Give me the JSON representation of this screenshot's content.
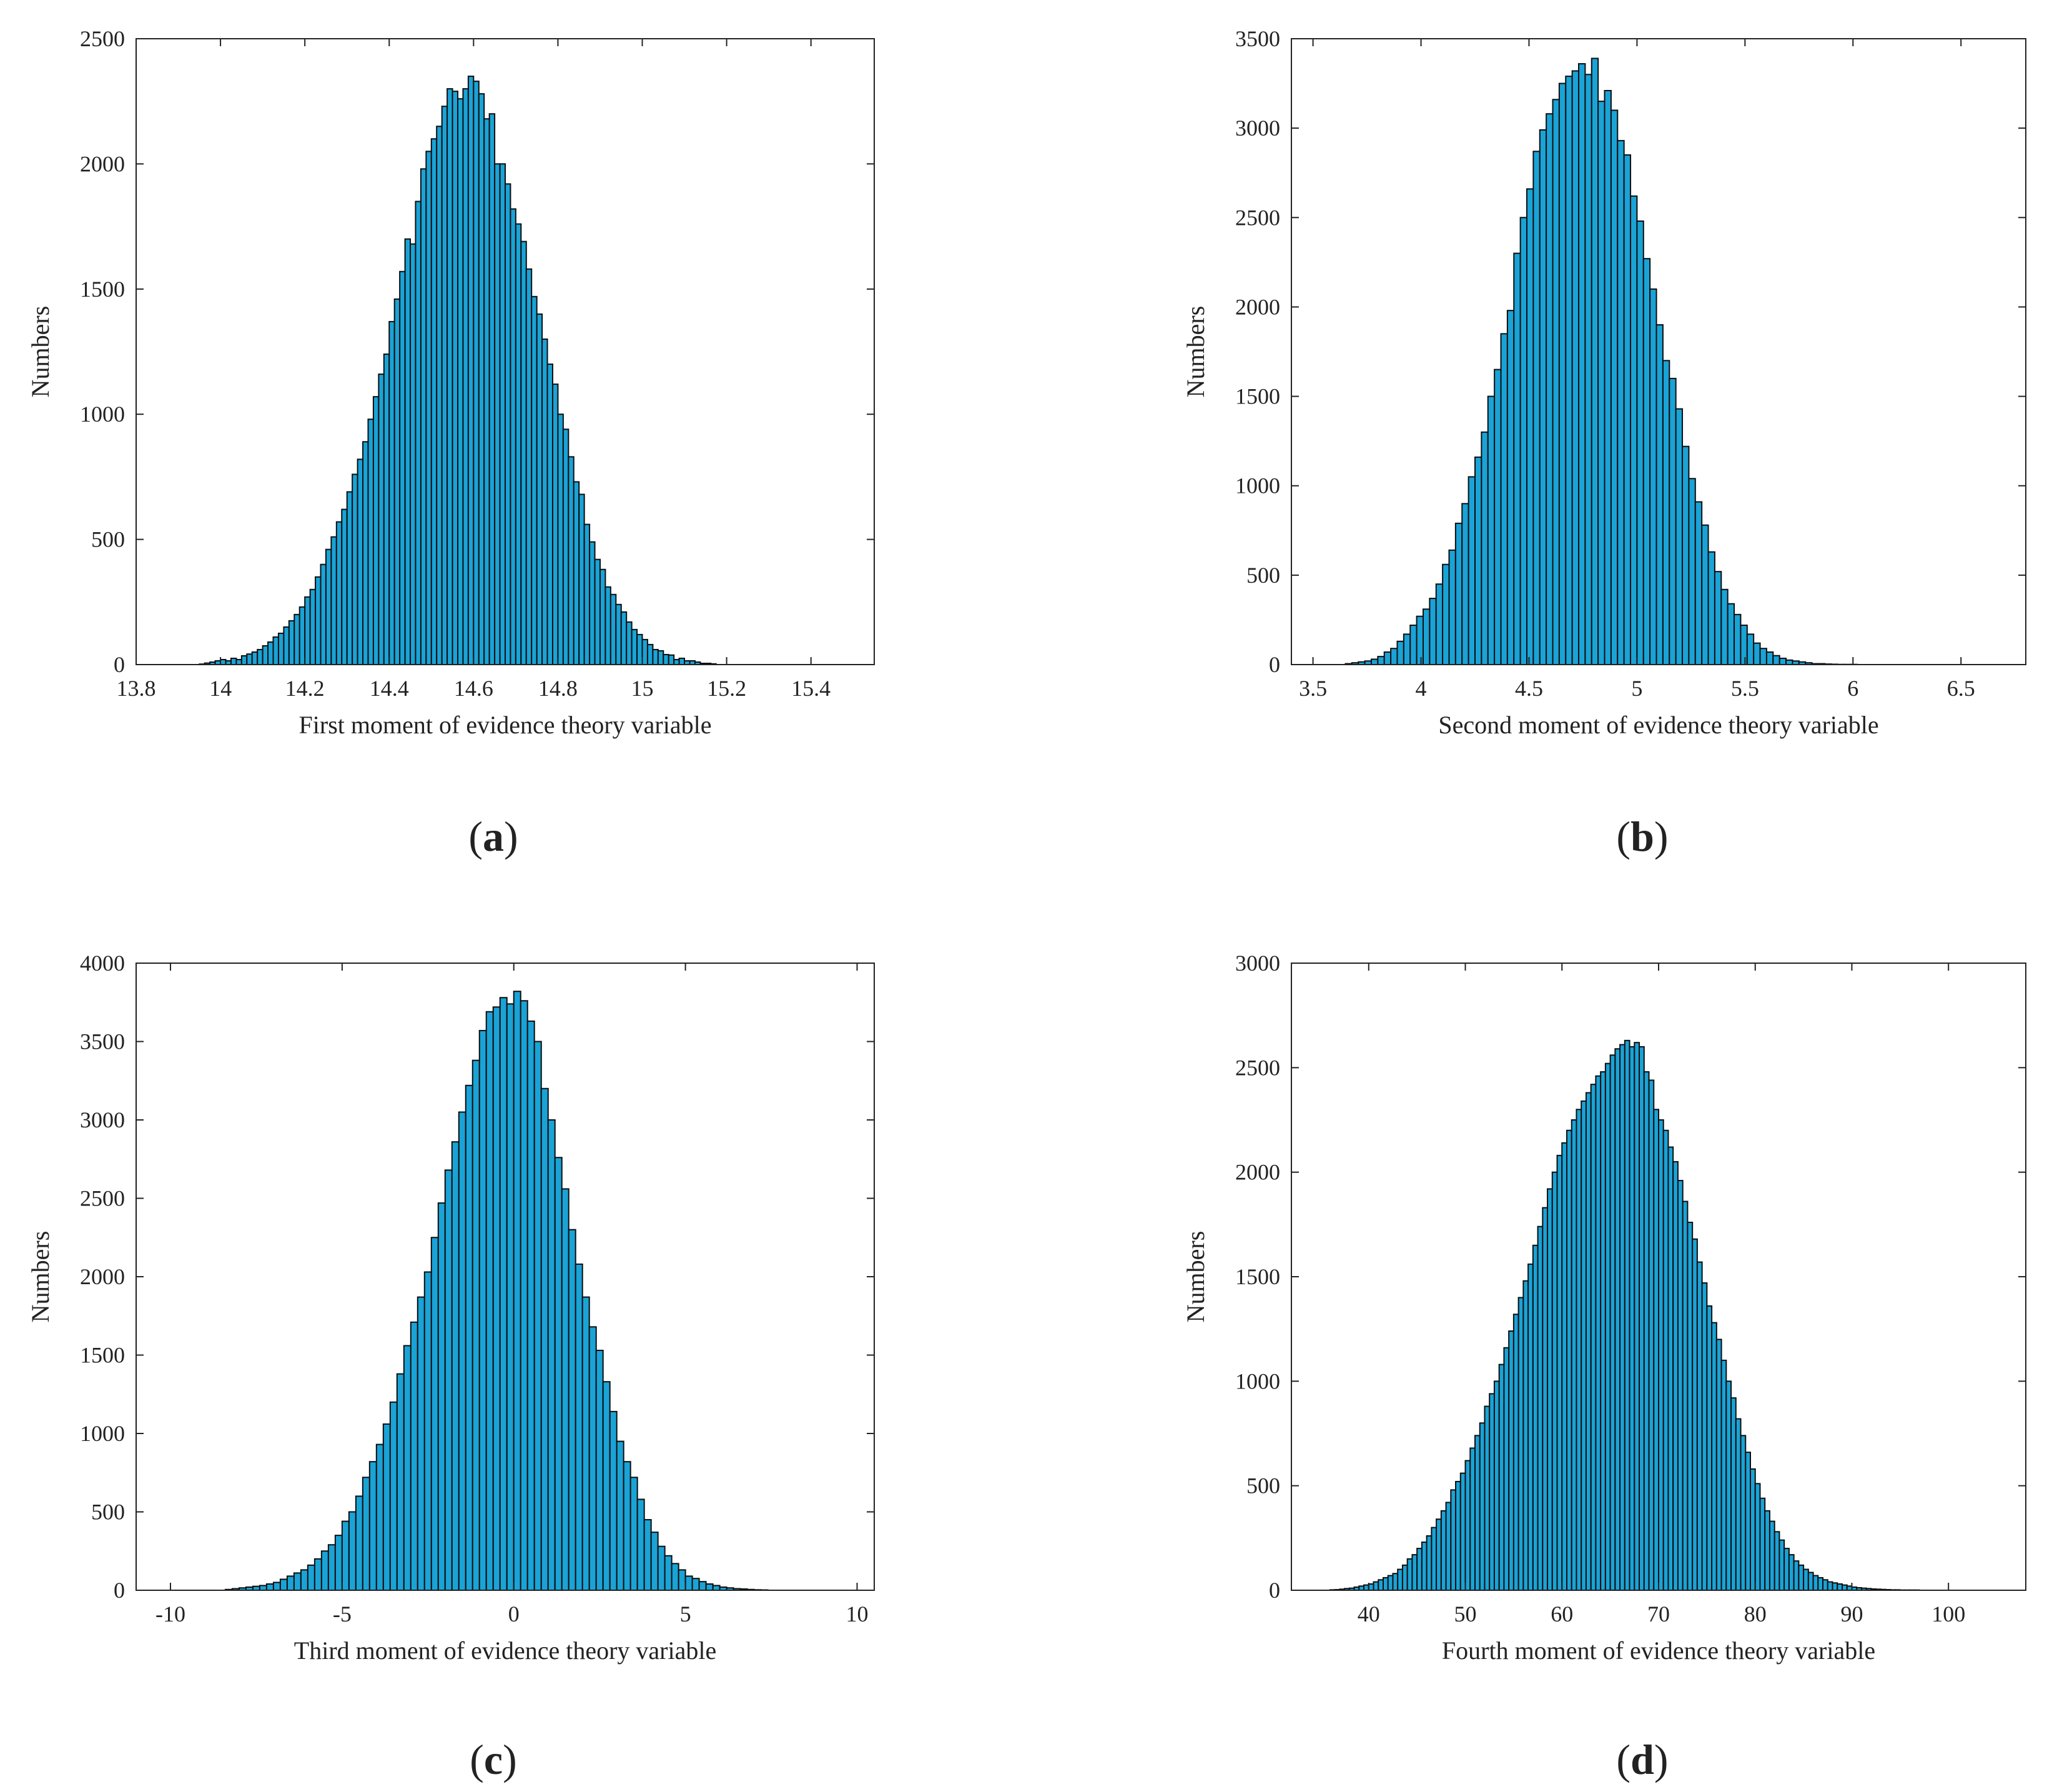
{
  "colors": {
    "bar_fill": "#1aa3d6",
    "bar_edge": "#0d0d0d",
    "axis": "#222222",
    "background": "#ffffff"
  },
  "chart_data": [
    {
      "type": "bar",
      "panel": "a",
      "xlabel": "First moment of evidence theory variable",
      "ylabel": "Numbers",
      "xlim": [
        13.8,
        15.55
      ],
      "ylim": [
        0,
        2500
      ],
      "xticks": [
        13.8,
        14,
        14.2,
        14.4,
        14.6,
        14.8,
        15,
        15.2,
        15.4
      ],
      "yticks": [
        0,
        500,
        1000,
        1500,
        2000,
        2500
      ],
      "bin_start": 13.95,
      "bin_width": 0.0125,
      "counts": [
        2,
        6,
        10,
        15,
        20,
        15,
        25,
        20,
        35,
        42,
        50,
        60,
        75,
        90,
        110,
        125,
        150,
        175,
        200,
        230,
        270,
        300,
        350,
        400,
        460,
        510,
        570,
        620,
        690,
        760,
        820,
        890,
        980,
        1070,
        1160,
        1240,
        1370,
        1460,
        1570,
        1700,
        1680,
        1850,
        1980,
        2050,
        2100,
        2150,
        2230,
        2300,
        2290,
        2260,
        2300,
        2350,
        2330,
        2280,
        2180,
        2200,
        2000,
        2000,
        1920,
        1820,
        1760,
        1690,
        1580,
        1470,
        1400,
        1300,
        1200,
        1120,
        1000,
        940,
        830,
        730,
        680,
        560,
        490,
        420,
        380,
        310,
        280,
        240,
        210,
        170,
        140,
        120,
        100,
        80,
        60,
        55,
        40,
        38,
        20,
        25,
        15,
        15,
        10,
        5,
        5,
        3
      ]
    },
    {
      "type": "bar",
      "panel": "b",
      "xlabel": "Second moment of evidence theory variable",
      "ylabel": "Numbers",
      "xlim": [
        3.4,
        6.8
      ],
      "ylim": [
        0,
        3500
      ],
      "xticks": [
        3.5,
        4,
        4.5,
        5,
        5.5,
        6,
        6.5
      ],
      "yticks": [
        0,
        500,
        1000,
        1500,
        2000,
        2500,
        3000,
        3500
      ],
      "bin_start": 3.65,
      "bin_width": 0.03,
      "counts": [
        5,
        10,
        15,
        20,
        30,
        45,
        70,
        90,
        130,
        170,
        220,
        270,
        310,
        370,
        450,
        560,
        640,
        790,
        900,
        1050,
        1160,
        1300,
        1500,
        1650,
        1850,
        1980,
        2300,
        2500,
        2660,
        2870,
        2990,
        3080,
        3160,
        3250,
        3290,
        3320,
        3360,
        3300,
        3390,
        3150,
        3210,
        3100,
        2930,
        2850,
        2620,
        2480,
        2270,
        2100,
        1900,
        1700,
        1600,
        1430,
        1220,
        1040,
        910,
        780,
        630,
        520,
        420,
        340,
        280,
        220,
        170,
        120,
        90,
        70,
        50,
        35,
        25,
        20,
        15,
        10,
        5,
        5,
        3,
        2,
        1,
        1,
        1
      ]
    },
    {
      "type": "bar",
      "panel": "c",
      "xlabel": "Third moment of evidence theory variable",
      "ylabel": "Numbers",
      "xlim": [
        -11,
        10.5
      ],
      "ylim": [
        0,
        4000
      ],
      "xticks": [
        -10,
        -5,
        0,
        5,
        10
      ],
      "yticks": [
        0,
        500,
        1000,
        1500,
        2000,
        2500,
        3000,
        3500,
        4000
      ],
      "bin_start": -8.4,
      "bin_width": 0.2,
      "counts": [
        5,
        10,
        15,
        20,
        25,
        30,
        40,
        50,
        70,
        90,
        110,
        130,
        160,
        200,
        250,
        290,
        350,
        440,
        500,
        600,
        720,
        820,
        930,
        1060,
        1200,
        1380,
        1560,
        1710,
        1870,
        2030,
        2250,
        2470,
        2680,
        2860,
        3050,
        3220,
        3380,
        3570,
        3690,
        3720,
        3780,
        3740,
        3820,
        3760,
        3630,
        3500,
        3200,
        3000,
        2760,
        2560,
        2300,
        2080,
        1870,
        1680,
        1530,
        1330,
        1140,
        950,
        820,
        720,
        580,
        450,
        370,
        280,
        220,
        170,
        130,
        90,
        75,
        55,
        40,
        30,
        20,
        15,
        10,
        8,
        5,
        3,
        2
      ]
    },
    {
      "type": "bar",
      "panel": "d",
      "xlabel": "Fourth moment of evidence theory variable",
      "ylabel": "Numbers",
      "xlim": [
        32,
        108
      ],
      "ylim": [
        0,
        3000
      ],
      "xticks": [
        40,
        50,
        60,
        70,
        80,
        90,
        100
      ],
      "yticks": [
        0,
        500,
        1000,
        1500,
        2000,
        2500,
        3000
      ],
      "bin_start": 36,
      "bin_width": 0.5,
      "counts": [
        2,
        3,
        5,
        8,
        10,
        15,
        20,
        25,
        30,
        40,
        50,
        60,
        70,
        80,
        100,
        120,
        150,
        170,
        200,
        230,
        260,
        300,
        340,
        380,
        420,
        480,
        520,
        560,
        620,
        680,
        740,
        800,
        880,
        940,
        1000,
        1080,
        1160,
        1240,
        1320,
        1400,
        1480,
        1560,
        1650,
        1740,
        1830,
        1920,
        2000,
        2080,
        2140,
        2200,
        2250,
        2300,
        2340,
        2380,
        2420,
        2460,
        2480,
        2520,
        2560,
        2590,
        2610,
        2630,
        2600,
        2620,
        2600,
        2480,
        2440,
        2300,
        2250,
        2200,
        2120,
        2050,
        1960,
        1860,
        1760,
        1680,
        1570,
        1470,
        1360,
        1280,
        1200,
        1100,
        1000,
        920,
        820,
        740,
        660,
        580,
        510,
        440,
        380,
        330,
        280,
        240,
        200,
        170,
        140,
        120,
        100,
        85,
        70,
        60,
        50,
        40,
        35,
        30,
        25,
        20,
        15,
        12,
        10,
        8,
        6,
        5,
        4,
        3,
        2,
        2,
        1,
        1,
        1,
        1
      ]
    }
  ]
}
